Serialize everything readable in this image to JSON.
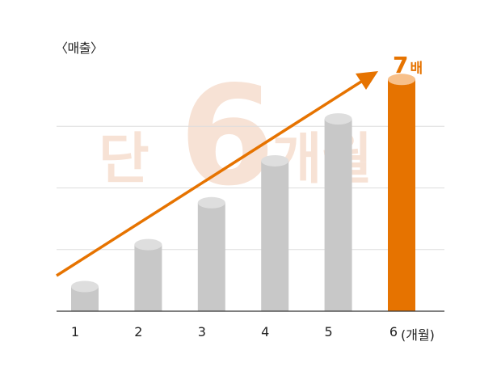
{
  "chart_data": {
    "type": "bar",
    "ylabel": "〈매출〉",
    "xlabel": "(개월)",
    "categories": [
      "1",
      "2",
      "3",
      "4",
      "5",
      "6"
    ],
    "values": [
      1,
      2.7,
      4.4,
      6.1,
      7.8,
      9.4
    ],
    "ylim": [
      0,
      10
    ],
    "grid": true,
    "highlight_index": 5,
    "callout": {
      "number": "7",
      "unit": "배"
    },
    "watermark": {
      "left": "단",
      "number": "6",
      "right": "개월"
    },
    "colors": {
      "bar": "#c8c8c8",
      "bar_top": "#dedede",
      "highlight": "#e67300",
      "highlight_top": "#f7c08a",
      "arrow": "#e67300",
      "watermark": "#f7e2d5",
      "grid": "#dddddd",
      "axis": "#333333"
    }
  }
}
